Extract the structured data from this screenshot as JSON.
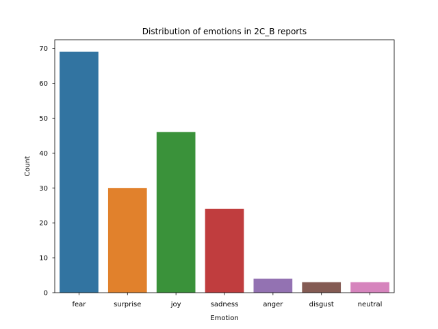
{
  "chart_data": {
    "type": "bar",
    "title": "Distribution of emotions in 2C_B reports",
    "xlabel": "Emotion",
    "ylabel": "Count",
    "categories": [
      "fear",
      "surprise",
      "joy",
      "sadness",
      "anger",
      "disgust",
      "neutral"
    ],
    "values": [
      69,
      30,
      46,
      24,
      4,
      3,
      3
    ],
    "colors": [
      "#3274a1",
      "#e1812c",
      "#3a923a",
      "#c03d3e",
      "#9372b2",
      "#845b53",
      "#d684bd"
    ],
    "ylim": [
      0,
      72.45
    ],
    "yticks": [
      0,
      10,
      20,
      30,
      40,
      50,
      60,
      70
    ],
    "grid": false,
    "legend": "none"
  }
}
